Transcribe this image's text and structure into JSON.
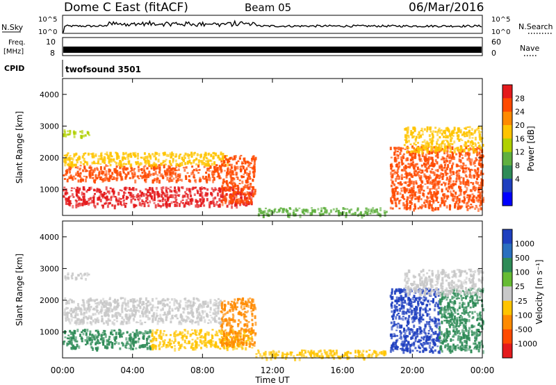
{
  "header": {
    "site": "Dome C East (fitACF)",
    "beam": "Beam 05",
    "date": "06/Mar/2016"
  },
  "status_panels": {
    "nsky_label": "N.Sky",
    "nsky_ticks": [
      "10^5",
      "10^0"
    ],
    "nsearch_label": "N.Search",
    "nsearch_ticks": [
      "10^5",
      "10^0"
    ],
    "freq_label": "Freq.",
    "freq_unit": "[MHz]",
    "freq_ticks": [
      "10",
      "8"
    ],
    "nave_label": "Nave",
    "nave_ticks": [
      "60",
      "0"
    ],
    "cpid_label": "CPID",
    "cpid_value": "twofsound 3501"
  },
  "chart_data": [
    {
      "type": "heatmap",
      "quantity": "Power",
      "ylabel": "Slant Range [km]",
      "xlabel": "Time UT",
      "xlim_hours": [
        0,
        24
      ],
      "ylim_km": [
        180,
        4500
      ],
      "yticks": [
        "4000",
        "3000",
        "2000",
        "1000"
      ],
      "xticks": [
        "00:00",
        "04:00",
        "08:00",
        "12:00",
        "16:00",
        "20:00",
        "00:00"
      ],
      "colorbar": {
        "label": "Power [dB]",
        "ticks": [
          "28",
          "24",
          "20",
          "16",
          "12",
          "8",
          "4"
        ],
        "colors": [
          "#e41a1c",
          "#ff4a00",
          "#ff8a00",
          "#ffc400",
          "#b0d000",
          "#60b040",
          "#2e8b57",
          "#1e3fbf",
          "#0000ff"
        ]
      },
      "echo_regions": [
        {
          "t0": 0.0,
          "t1": 10.8,
          "r0": 500,
          "r1": 1100,
          "level": "28"
        },
        {
          "t0": 0.0,
          "t1": 9.0,
          "r0": 1300,
          "r1": 1800,
          "level": "24"
        },
        {
          "t0": 0.0,
          "t1": 9.5,
          "r0": 1800,
          "r1": 2200,
          "level": "16"
        },
        {
          "t0": 0.0,
          "t1": 1.5,
          "r0": 2700,
          "r1": 2900,
          "level": "12"
        },
        {
          "t0": 9.0,
          "t1": 11.0,
          "r0": 600,
          "r1": 2100,
          "level": "24"
        },
        {
          "t0": 11.0,
          "t1": 18.5,
          "r0": 200,
          "r1": 450,
          "level": "8"
        },
        {
          "t0": 18.7,
          "t1": 24.0,
          "r0": 400,
          "r1": 2400,
          "level": "24"
        },
        {
          "t0": 19.5,
          "t1": 24.0,
          "r0": 2200,
          "r1": 3000,
          "level": "16"
        }
      ]
    },
    {
      "type": "heatmap",
      "quantity": "Velocity",
      "ylabel": "Slant Range [km]",
      "xlabel": "Time UT",
      "xlim_hours": [
        0,
        24
      ],
      "ylim_km": [
        180,
        4500
      ],
      "yticks": [
        "4000",
        "3000",
        "2000",
        "1000"
      ],
      "xticks": [
        "00:00",
        "04:00",
        "08:00",
        "12:00",
        "16:00",
        "20:00",
        "00:00"
      ],
      "colorbar": {
        "label": "Velocity [m s⁻¹]",
        "ticks": [
          "1000",
          "500",
          "100",
          "25",
          "-25",
          "-100",
          "-500",
          "-1000"
        ],
        "colors": [
          "#1e3fbf",
          "#2a6fbf",
          "#2e8b57",
          "#66bb33",
          "#c8c8c8",
          "#ffc400",
          "#ff8a00",
          "#ff4a00",
          "#e41a1c"
        ]
      },
      "echo_regions": [
        {
          "t0": 0.0,
          "t1": 5.0,
          "r0": 500,
          "r1": 1100,
          "level": "100"
        },
        {
          "t0": 5.0,
          "t1": 10.8,
          "r0": 500,
          "r1": 1100,
          "level": "-100"
        },
        {
          "t0": 0.0,
          "t1": 9.0,
          "r0": 1300,
          "r1": 2100,
          "level": "-25"
        },
        {
          "t0": 0.0,
          "t1": 1.5,
          "r0": 2700,
          "r1": 2900,
          "level": "-25"
        },
        {
          "t0": 9.0,
          "t1": 11.0,
          "r0": 600,
          "r1": 2100,
          "level": "-500"
        },
        {
          "t0": 11.0,
          "t1": 18.5,
          "r0": 200,
          "r1": 450,
          "level": "-100"
        },
        {
          "t0": 18.7,
          "t1": 21.5,
          "r0": 400,
          "r1": 2400,
          "level": "1000"
        },
        {
          "t0": 21.5,
          "t1": 24.0,
          "r0": 400,
          "r1": 2400,
          "level": "100"
        },
        {
          "t0": 19.5,
          "t1": 24.0,
          "r0": 2200,
          "r1": 3000,
          "level": "-25"
        }
      ]
    }
  ]
}
